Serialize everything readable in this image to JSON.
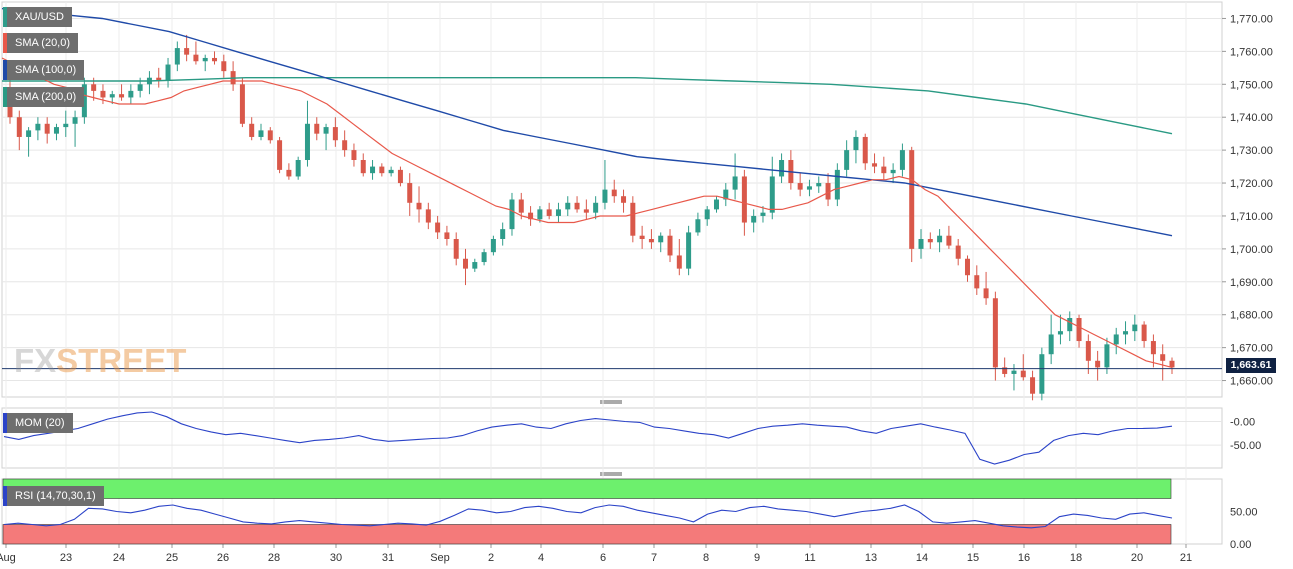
{
  "chart_data": {
    "type": "candlestick",
    "symbol": "XAU/USD",
    "legend": [
      "XAU/USD",
      "SMA (20,0)",
      "SMA (100,0)",
      "SMA (200,0)"
    ],
    "colors": {
      "up": "#2e9c8a",
      "down": "#d9584a",
      "sma20": "#e8584a",
      "sma100": "#1f4aa8",
      "sma200": "#2a9a84",
      "price_line": "#1f3a6e",
      "mom": "#2b43c8",
      "rsi": "#2b43c8",
      "rsi_over": "#6df06d",
      "rsi_under": "#f47a7a"
    },
    "ylim": [
      1655,
      1775
    ],
    "y_ticks": [
      "1,770.00",
      "1,760.00",
      "1,750.00",
      "1,740.00",
      "1,730.00",
      "1,720.00",
      "1,710.00",
      "1,700.00",
      "1,690.00",
      "1,680.00",
      "1,670.00",
      "1,660.00"
    ],
    "last_price": "1,663.61",
    "x_tick_labels": [
      "Aug",
      "23",
      "24",
      "25",
      "26",
      "28",
      "30",
      "31",
      "Sep",
      "2",
      "4",
      "6",
      "7",
      "8",
      "9",
      "11",
      "13",
      "14",
      "15",
      "16",
      "18",
      "20",
      "21"
    ],
    "candles_4h": [
      [
        1748,
        1752,
        1738,
        1740
      ],
      [
        1740,
        1742,
        1730,
        1734
      ],
      [
        1734,
        1737,
        1728,
        1736
      ],
      [
        1736,
        1740,
        1733,
        1738
      ],
      [
        1738,
        1740,
        1732,
        1735
      ],
      [
        1735,
        1738,
        1733,
        1737
      ],
      [
        1737,
        1742,
        1734,
        1738
      ],
      [
        1738,
        1742,
        1731,
        1740
      ],
      [
        1740,
        1752,
        1738,
        1750
      ],
      [
        1750,
        1752,
        1745,
        1748
      ],
      [
        1748,
        1750,
        1744,
        1746
      ],
      [
        1746,
        1748,
        1744,
        1747
      ],
      [
        1747,
        1750,
        1745,
        1746
      ],
      [
        1746,
        1750,
        1744,
        1748
      ],
      [
        1748,
        1752,
        1746,
        1750
      ],
      [
        1750,
        1754,
        1747,
        1752
      ],
      [
        1752,
        1755,
        1749,
        1751
      ],
      [
        1751,
        1758,
        1749,
        1756
      ],
      [
        1756,
        1763,
        1754,
        1761
      ],
      [
        1761,
        1765,
        1757,
        1759
      ],
      [
        1759,
        1763,
        1756,
        1757
      ],
      [
        1757,
        1759,
        1754,
        1758
      ],
      [
        1758,
        1760,
        1756,
        1757
      ],
      [
        1757,
        1759,
        1752,
        1754
      ],
      [
        1754,
        1757,
        1748,
        1750
      ],
      [
        1750,
        1752,
        1737,
        1738
      ],
      [
        1738,
        1740,
        1733,
        1734
      ],
      [
        1734,
        1738,
        1733,
        1736
      ],
      [
        1736,
        1737,
        1732,
        1733
      ],
      [
        1733,
        1734,
        1723,
        1724
      ],
      [
        1724,
        1726,
        1721,
        1722
      ],
      [
        1722,
        1728,
        1721,
        1727
      ],
      [
        1727,
        1745,
        1725,
        1738
      ],
      [
        1738,
        1740,
        1733,
        1735
      ],
      [
        1735,
        1738,
        1730,
        1737
      ],
      [
        1737,
        1740,
        1731,
        1733
      ],
      [
        1733,
        1736,
        1728,
        1730
      ],
      [
        1730,
        1732,
        1725,
        1727
      ],
      [
        1727,
        1729,
        1722,
        1723
      ],
      [
        1723,
        1727,
        1721,
        1725
      ],
      [
        1725,
        1726,
        1722,
        1723
      ],
      [
        1723,
        1725,
        1722,
        1724
      ],
      [
        1724,
        1725,
        1719,
        1720
      ],
      [
        1720,
        1723,
        1710,
        1714
      ],
      [
        1714,
        1719,
        1708,
        1712
      ],
      [
        1712,
        1714,
        1706,
        1708
      ],
      [
        1708,
        1710,
        1703,
        1705
      ],
      [
        1705,
        1707,
        1701,
        1703
      ],
      [
        1703,
        1705,
        1695,
        1697
      ],
      [
        1697,
        1700,
        1689,
        1694
      ],
      [
        1694,
        1697,
        1693,
        1696
      ],
      [
        1696,
        1700,
        1695,
        1699
      ],
      [
        1699,
        1704,
        1698,
        1703
      ],
      [
        1703,
        1708,
        1701,
        1706
      ],
      [
        1706,
        1717,
        1704,
        1715
      ],
      [
        1715,
        1717,
        1709,
        1711
      ],
      [
        1711,
        1713,
        1707,
        1709
      ],
      [
        1709,
        1713,
        1708,
        1712
      ],
      [
        1712,
        1714,
        1709,
        1710
      ],
      [
        1710,
        1714,
        1708,
        1712
      ],
      [
        1712,
        1716,
        1710,
        1714
      ],
      [
        1714,
        1716,
        1711,
        1712
      ],
      [
        1712,
        1715,
        1709,
        1711
      ],
      [
        1711,
        1716,
        1709,
        1714
      ],
      [
        1714,
        1727,
        1712,
        1718
      ],
      [
        1718,
        1721,
        1714,
        1716
      ],
      [
        1716,
        1718,
        1711,
        1714
      ],
      [
        1714,
        1716,
        1702,
        1704
      ],
      [
        1704,
        1707,
        1700,
        1703
      ],
      [
        1703,
        1706,
        1700,
        1702
      ],
      [
        1702,
        1705,
        1699,
        1704
      ],
      [
        1704,
        1706,
        1696,
        1698
      ],
      [
        1698,
        1703,
        1692,
        1694
      ],
      [
        1694,
        1707,
        1692,
        1705
      ],
      [
        1705,
        1711,
        1704,
        1709
      ],
      [
        1709,
        1713,
        1707,
        1712
      ],
      [
        1712,
        1716,
        1711,
        1715
      ],
      [
        1715,
        1720,
        1713,
        1718
      ],
      [
        1718,
        1729,
        1715,
        1722
      ],
      [
        1722,
        1724,
        1704,
        1708
      ],
      [
        1708,
        1712,
        1705,
        1710
      ],
      [
        1710,
        1713,
        1708,
        1711
      ],
      [
        1711,
        1728,
        1709,
        1722
      ],
      [
        1722,
        1729,
        1720,
        1727
      ],
      [
        1727,
        1730,
        1718,
        1720
      ],
      [
        1720,
        1723,
        1716,
        1718
      ],
      [
        1718,
        1721,
        1716,
        1719
      ],
      [
        1719,
        1722,
        1717,
        1720
      ],
      [
        1720,
        1723,
        1713,
        1715
      ],
      [
        1715,
        1726,
        1713,
        1724
      ],
      [
        1724,
        1733,
        1722,
        1730
      ],
      [
        1730,
        1736,
        1726,
        1734
      ],
      [
        1734,
        1735,
        1724,
        1726
      ],
      [
        1726,
        1729,
        1723,
        1725
      ],
      [
        1725,
        1728,
        1721,
        1723
      ],
      [
        1723,
        1726,
        1720,
        1724
      ],
      [
        1724,
        1732,
        1722,
        1730
      ],
      [
        1730,
        1731,
        1696,
        1700
      ],
      [
        1700,
        1706,
        1697,
        1703
      ],
      [
        1703,
        1705,
        1700,
        1702
      ],
      [
        1702,
        1706,
        1699,
        1704
      ],
      [
        1704,
        1707,
        1700,
        1701
      ],
      [
        1701,
        1703,
        1695,
        1697
      ],
      [
        1697,
        1698,
        1690,
        1692
      ],
      [
        1692,
        1695,
        1686,
        1688
      ],
      [
        1688,
        1693,
        1683,
        1685
      ],
      [
        1685,
        1687,
        1660,
        1664
      ],
      [
        1664,
        1667,
        1661,
        1662
      ],
      [
        1662,
        1665,
        1657,
        1663
      ],
      [
        1663,
        1668,
        1660,
        1661
      ],
      [
        1661,
        1663,
        1654,
        1656
      ],
      [
        1656,
        1670,
        1654,
        1668
      ],
      [
        1668,
        1680,
        1665,
        1674
      ],
      [
        1674,
        1680,
        1671,
        1675
      ],
      [
        1675,
        1681,
        1672,
        1679
      ],
      [
        1679,
        1680,
        1670,
        1672
      ],
      [
        1672,
        1674,
        1662,
        1666
      ],
      [
        1666,
        1669,
        1660,
        1664
      ],
      [
        1664,
        1673,
        1662,
        1671
      ],
      [
        1671,
        1676,
        1668,
        1674
      ],
      [
        1674,
        1678,
        1671,
        1675
      ],
      [
        1675,
        1680,
        1672,
        1677
      ],
      [
        1677,
        1678,
        1670,
        1672
      ],
      [
        1672,
        1674,
        1664,
        1668
      ],
      [
        1668,
        1671,
        1660,
        1666
      ],
      [
        1666,
        1667,
        1662,
        1664
      ]
    ],
    "sma20": [
      1758,
      1756,
      1754,
      1752,
      1750,
      1749,
      1747,
      1746,
      1745,
      1744,
      1744,
      1744,
      1745,
      1746,
      1748,
      1749,
      1750,
      1751,
      1751,
      1751,
      1751,
      1750,
      1749,
      1748,
      1746,
      1744,
      1741,
      1738,
      1735,
      1732,
      1729,
      1727,
      1725,
      1723,
      1721,
      1719,
      1717,
      1715,
      1713,
      1712,
      1710,
      1709,
      1708,
      1708,
      1708,
      1709,
      1710,
      1710,
      1710,
      1711,
      1712,
      1713,
      1714,
      1715,
      1716,
      1716,
      1715,
      1714,
      1713,
      1712,
      1712,
      1713,
      1714,
      1716,
      1718,
      1719,
      1720,
      1721,
      1721,
      1722,
      1721,
      1718,
      1716,
      1712,
      1708,
      1704,
      1700,
      1696,
      1692,
      1688,
      1684,
      1680,
      1678,
      1676,
      1674,
      1672,
      1670,
      1668,
      1666,
      1665,
      1664
    ],
    "sma100": [
      1773,
      1772,
      1771,
      1770,
      1768,
      1766,
      1763,
      1760,
      1757,
      1754,
      1751,
      1748,
      1745,
      1742,
      1739,
      1736,
      1734,
      1732,
      1730,
      1728,
      1727,
      1726,
      1725,
      1724,
      1723,
      1722,
      1721,
      1720,
      1718,
      1716,
      1714,
      1712,
      1710,
      1708,
      1706,
      1704
    ],
    "sma200": [
      1751,
      1751,
      1751,
      1751,
      1751.5,
      1752,
      1752,
      1752,
      1752,
      1752,
      1752,
      1752,
      1752,
      1752,
      1751.5,
      1751,
      1750.5,
      1750,
      1749,
      1748,
      1746,
      1744,
      1741,
      1738,
      1735
    ],
    "panels": [
      {
        "name": "MOM (20)",
        "y_ticks": [
          "-0.00",
          "-50.00"
        ],
        "values": [
          -32,
          -38,
          -30,
          -25,
          -20,
          -15,
          -5,
          5,
          12,
          18,
          20,
          10,
          -5,
          -15,
          -22,
          -28,
          -25,
          -30,
          -35,
          -40,
          -45,
          -40,
          -38,
          -35,
          -30,
          -38,
          -42,
          -40,
          -38,
          -36,
          -35,
          -30,
          -20,
          -12,
          -8,
          -5,
          -12,
          -15,
          -5,
          2,
          6,
          3,
          0,
          -2,
          -12,
          -15,
          -20,
          -25,
          -28,
          -35,
          -25,
          -15,
          -10,
          -8,
          -5,
          -8,
          -10,
          -12,
          -20,
          -25,
          -15,
          -10,
          -5,
          -12,
          -18,
          -25,
          -80,
          -90,
          -82,
          -70,
          -65,
          -40,
          -30,
          -25,
          -28,
          -20,
          -15,
          -15,
          -14,
          -10
        ],
        "ylim": [
          -90,
          20
        ]
      },
      {
        "name": "RSI (14,70,30,1)",
        "y_ticks": [
          "50.00",
          "0.00"
        ],
        "levels": [
          70,
          30
        ],
        "values": [
          30,
          32,
          30,
          28,
          30,
          38,
          55,
          54,
          50,
          48,
          52,
          58,
          60,
          55,
          52,
          46,
          40,
          34,
          32,
          31,
          34,
          36,
          34,
          32,
          30,
          29,
          28,
          30,
          32,
          31,
          29,
          35,
          44,
          54,
          52,
          48,
          50,
          56,
          58,
          55,
          50,
          48,
          56,
          60,
          58,
          52,
          48,
          44,
          40,
          34,
          46,
          52,
          50,
          56,
          58,
          54,
          52,
          50,
          46,
          42,
          46,
          50,
          52,
          55,
          60,
          50,
          34,
          32,
          34,
          36,
          32,
          28,
          26,
          25,
          27,
          42,
          46,
          44,
          40,
          38,
          46,
          48,
          44,
          40
        ],
        "ylim": [
          0,
          100
        ]
      }
    ]
  }
}
